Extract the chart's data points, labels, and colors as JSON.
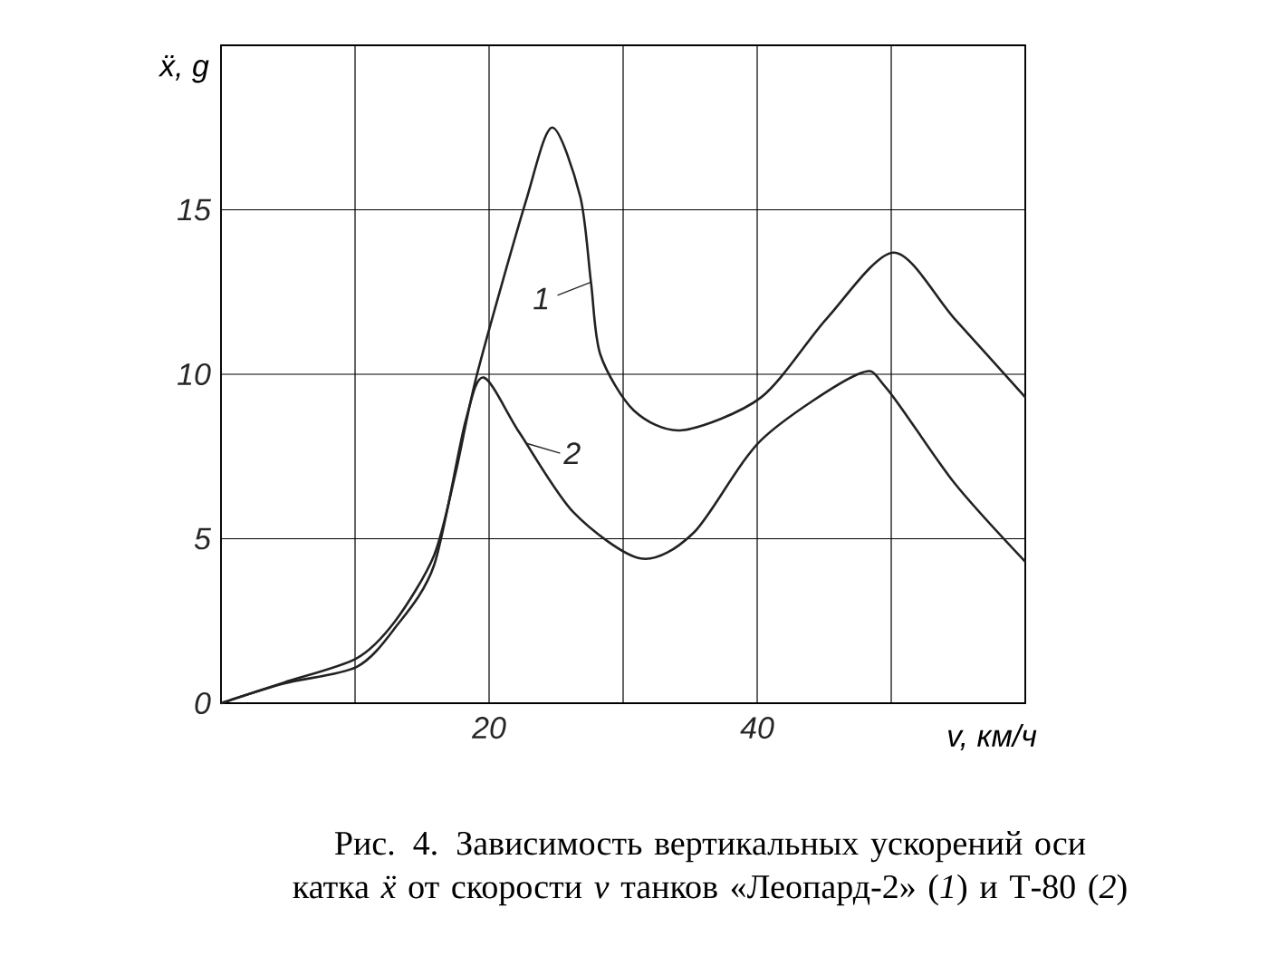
{
  "chart_data": {
    "type": "line",
    "title": "Рис. 4. Зависимость вертикальных ускорений оси катка *ẍ* от скорости *v* танков «Леопард-2» (*1*) и Т-80 (*2*)",
    "xlabel": "v, км/ч",
    "ylabel": "ẍ, g",
    "xlim": [
      0,
      60
    ],
    "ylim": [
      0,
      20
    ],
    "xticks": [
      {
        "value": 0,
        "label": null
      },
      {
        "value": 10,
        "label": null
      },
      20,
      {
        "value": 30,
        "label": null
      },
      40,
      {
        "value": 50,
        "label": null
      },
      {
        "value": 60,
        "label": null
      }
    ],
    "yticks": [
      0,
      5,
      10,
      15
    ],
    "grid": true,
    "line_style": "solid",
    "annotations": [
      {
        "text": "1",
        "x": 27.6,
        "y": 12.8
      },
      {
        "text": "2",
        "x": 22.8,
        "y": 7.9
      }
    ],
    "series": [
      {
        "color": "#222222",
        "x": [
          0,
          4.7,
          10.1,
          13.0,
          15.9,
          17.5,
          19.1,
          22.7,
          24.7,
          26.8,
          27.6,
          28.3,
          30.8,
          34.4,
          40.3,
          45.2,
          50.2,
          54.7,
          60
        ],
        "values": [
          0,
          0.63,
          1.36,
          2.5,
          4.5,
          7.0,
          10,
          15.2,
          17.5,
          15.4,
          12.8,
          10.6,
          8.9,
          8.3,
          9.3,
          11.7,
          13.7,
          11.7,
          9.3
        ]
      },
      {
        "color": "#222222",
        "x": [
          0,
          4.7,
          10.1,
          13.0,
          15.9,
          18.2,
          19.6,
          22.3,
          26.3,
          31.3,
          35.3,
          40.3,
          47.5,
          49.6,
          54.7,
          60
        ],
        "values": [
          0,
          0.6,
          1.1,
          2.3,
          4.2,
          8.5,
          9.9,
          8.2,
          5.8,
          4.4,
          5.2,
          8.0,
          10.0,
          9.6,
          6.7,
          4.3
        ]
      }
    ]
  }
}
